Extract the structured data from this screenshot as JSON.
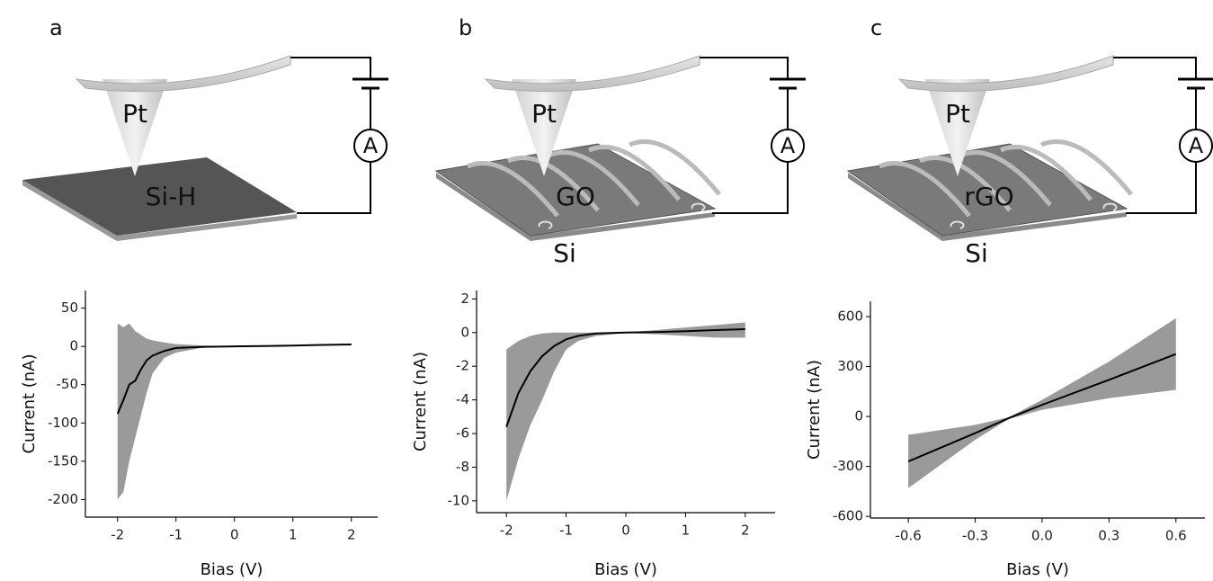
{
  "panels": [
    {
      "label": "a",
      "tip": "Pt",
      "sample": "Si-H",
      "meter": "A"
    },
    {
      "label": "b",
      "tip": "Pt",
      "sample": "GO",
      "substrate": "Si",
      "meter": "A"
    },
    {
      "label": "c",
      "tip": "Pt",
      "sample": "rGO",
      "substrate": "Si",
      "meter": "A"
    }
  ],
  "chart_data": [
    {
      "type": "line",
      "xlabel": "Bias (V)",
      "ylabel": "Current (nA)",
      "x": [
        -2,
        -1.9,
        -1.8,
        -1.7,
        -1.6,
        -1.5,
        -1.4,
        -1.2,
        -1,
        -0.5,
        0,
        0.5,
        1,
        1.5,
        2
      ],
      "series": [
        {
          "color": "#000000",
          "values": [
            -88,
            -70,
            -50,
            -45,
            -30,
            -18,
            -12,
            -6,
            -2,
            -0.5,
            0,
            0.5,
            1,
            2,
            2.5
          ]
        }
      ],
      "band_lower": [
        -200,
        -190,
        -150,
        -120,
        -90,
        -60,
        -35,
        -15,
        -8,
        -1,
        0,
        0.2,
        0.5,
        1,
        1.5
      ],
      "band_upper": [
        30,
        25,
        30,
        20,
        15,
        10,
        8,
        5,
        3,
        1,
        0,
        0.8,
        1.5,
        2.5,
        3.5
      ],
      "band_color": "#9a9a9a",
      "xlim": [
        -2.55,
        2.45
      ],
      "ylim": [
        -223,
        73
      ],
      "xticks": [
        -2,
        -1,
        0,
        1,
        2
      ],
      "yticks": [
        50,
        0,
        -50,
        -100,
        -150,
        -200
      ]
    },
    {
      "type": "line",
      "xlabel": "Bias (V)",
      "ylabel": "Current (nA)",
      "x": [
        -2,
        -1.8,
        -1.6,
        -1.4,
        -1.2,
        -1,
        -0.8,
        -0.5,
        0,
        0.5,
        1,
        1.5,
        2
      ],
      "series": [
        {
          "color": "#000000",
          "values": [
            -5.6,
            -3.6,
            -2.3,
            -1.4,
            -0.8,
            -0.4,
            -0.2,
            -0.05,
            0,
            0.03,
            0.08,
            0.15,
            0.2
          ]
        }
      ],
      "band_lower": [
        -10,
        -7.5,
        -5.5,
        -4,
        -2.3,
        -1,
        -0.5,
        -0.2,
        -0.02,
        -0.1,
        -0.2,
        -0.3,
        -0.3
      ],
      "band_upper": [
        -1,
        -0.5,
        -0.2,
        -0.05,
        0,
        0,
        0,
        0,
        0.02,
        0.15,
        0.3,
        0.45,
        0.6
      ],
      "band_color": "#9a9a9a",
      "xlim": [
        -2.5,
        2.5
      ],
      "ylim": [
        -10.7,
        2.5
      ],
      "xticks": [
        -2,
        -1,
        0,
        1,
        2
      ],
      "yticks": [
        2,
        0,
        -2,
        -4,
        -6,
        -8,
        -10
      ]
    },
    {
      "type": "line",
      "xlabel": "Bias (V)",
      "ylabel": "Current (nA)",
      "x": [
        -0.6,
        -0.3,
        -0.15,
        0,
        0.3,
        0.6
      ],
      "series": [
        {
          "color": "#000000",
          "values": [
            -270,
            -100,
            -10,
            70,
            220,
            375
          ]
        }
      ],
      "band_lower": [
        -430,
        -140,
        -15,
        40,
        110,
        160
      ],
      "band_upper": [
        -110,
        -50,
        -5,
        100,
        330,
        590
      ],
      "band_color": "#9a9a9a",
      "xlim": [
        -0.77,
        0.73
      ],
      "ylim": [
        -610,
        692
      ],
      "xticks": [
        -0.6,
        -0.3,
        {
          "value": 0,
          "label": "0.0"
        },
        0.3,
        0.6
      ],
      "yticks": [
        600,
        300,
        0,
        -300,
        -600
      ]
    }
  ]
}
